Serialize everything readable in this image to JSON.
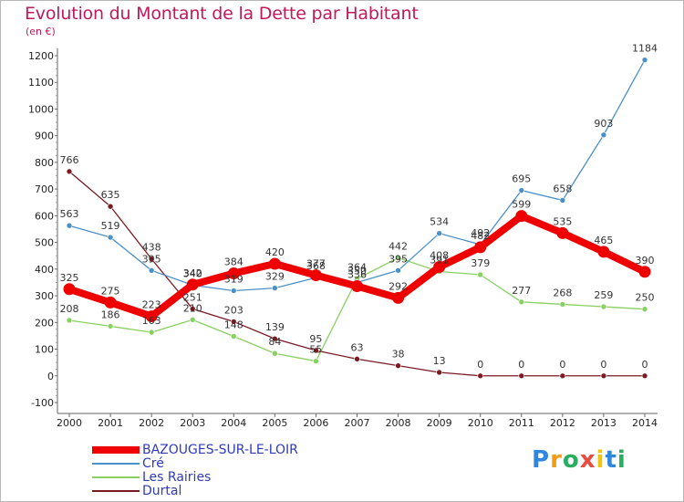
{
  "title": "Evolution du Montant de la Dette par Habitant",
  "subtitle": "(en €)",
  "logo": {
    "letters": [
      "P",
      "r",
      "o",
      "x",
      "i",
      "t",
      "i"
    ],
    "colors": [
      "#2e86de",
      "#f39c12",
      "#27ae60",
      "#e74c3c",
      "#f1c40f",
      "#2e86de",
      "#27ae60"
    ]
  },
  "chart_data": {
    "type": "line",
    "title": "Evolution du Montant de la Dette par Habitant",
    "subtitle": "(en €)",
    "x": [
      "2000",
      "2001",
      "2002",
      "2003",
      "2004",
      "2005",
      "2006",
      "2007",
      "2008",
      "2009",
      "2010",
      "2011",
      "2012",
      "2013",
      "2014"
    ],
    "ylim": [
      -100,
      1200
    ],
    "yticks": [
      -100,
      0,
      100,
      200,
      300,
      400,
      500,
      600,
      700,
      800,
      900,
      1000,
      1100,
      1200
    ],
    "grid": false,
    "legend": "bottom-left",
    "series": [
      {
        "name": "BAZOUGES-SUR-LE-LOIR",
        "color": "#ee0000",
        "values": [
          325,
          275,
          223,
          342,
          384,
          420,
          377,
          336,
          292,
          408,
          482,
          599,
          535,
          465,
          390
        ]
      },
      {
        "name": "Cré",
        "color": "#4a90c8",
        "values": [
          563,
          519,
          395,
          340,
          319,
          329,
          368,
          350,
          395,
          534,
          492,
          695,
          658,
          903,
          1184
        ]
      },
      {
        "name": "Les Rairies",
        "color": "#88d060",
        "values": [
          208,
          186,
          163,
          210,
          148,
          84,
          55,
          364,
          442,
          391,
          379,
          277,
          268,
          259,
          250
        ]
      },
      {
        "name": "Durtal",
        "color": "#7a1a22",
        "values": [
          766,
          635,
          438,
          251,
          203,
          139,
          95,
          63,
          38,
          13,
          0,
          0,
          0,
          0,
          0
        ]
      }
    ]
  }
}
